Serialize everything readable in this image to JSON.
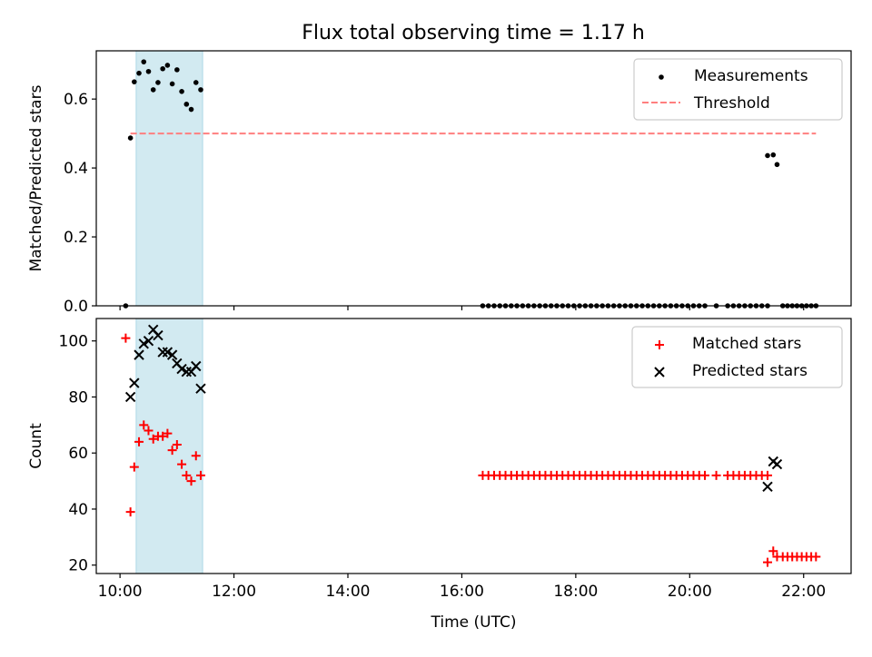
{
  "title": "Flux total observing time = 1.17 h",
  "chart_data": [
    {
      "type": "scatter",
      "ylabel": "Matched/Predicted stars",
      "xlabel": "",
      "xlim": [
        "09:35",
        "22:50"
      ],
      "ylim": [
        0,
        0.74
      ],
      "yticks": [
        0.0,
        0.2,
        0.4,
        0.6
      ],
      "ytick_labels": [
        "0.0",
        "0.2",
        "0.4",
        "0.6"
      ],
      "grid": false,
      "legend_position": "top-right",
      "shaded_interval": [
        "10:17",
        "11:27"
      ],
      "shaded_color": "#add8e6",
      "series": [
        {
          "name": "Measurements",
          "color": "#000000",
          "marker": "dot",
          "points": [
            [
              "10:06",
              0.0
            ],
            [
              "10:11",
              0.487
            ],
            [
              "10:15",
              0.65
            ],
            [
              "10:20",
              0.675
            ],
            [
              "10:25",
              0.708
            ],
            [
              "10:30",
              0.68
            ],
            [
              "10:35",
              0.627
            ],
            [
              "10:40",
              0.648
            ],
            [
              "10:45",
              0.688
            ],
            [
              "10:50",
              0.698
            ],
            [
              "10:55",
              0.644
            ],
            [
              "11:00",
              0.685
            ],
            [
              "11:05",
              0.622
            ],
            [
              "11:10",
              0.585
            ],
            [
              "11:15",
              0.57
            ],
            [
              "11:20",
              0.648
            ],
            [
              "11:25",
              0.627
            ],
            [
              "16:22",
              0.0
            ],
            [
              "16:28",
              0.0
            ],
            [
              "16:34",
              0.0
            ],
            [
              "16:40",
              0.0
            ],
            [
              "16:46",
              0.0
            ],
            [
              "16:52",
              0.0
            ],
            [
              "16:58",
              0.0
            ],
            [
              "17:04",
              0.0
            ],
            [
              "17:10",
              0.0
            ],
            [
              "17:16",
              0.0
            ],
            [
              "17:22",
              0.0
            ],
            [
              "17:28",
              0.0
            ],
            [
              "17:34",
              0.0
            ],
            [
              "17:40",
              0.0
            ],
            [
              "17:46",
              0.0
            ],
            [
              "17:52",
              0.0
            ],
            [
              "17:58",
              0.0
            ],
            [
              "18:04",
              0.0
            ],
            [
              "18:10",
              0.0
            ],
            [
              "18:16",
              0.0
            ],
            [
              "18:22",
              0.0
            ],
            [
              "18:28",
              0.0
            ],
            [
              "18:34",
              0.0
            ],
            [
              "18:40",
              0.0
            ],
            [
              "18:46",
              0.0
            ],
            [
              "18:52",
              0.0
            ],
            [
              "18:58",
              0.0
            ],
            [
              "19:04",
              0.0
            ],
            [
              "19:10",
              0.0
            ],
            [
              "19:16",
              0.0
            ],
            [
              "19:22",
              0.0
            ],
            [
              "19:28",
              0.0
            ],
            [
              "19:34",
              0.0
            ],
            [
              "19:40",
              0.0
            ],
            [
              "19:46",
              0.0
            ],
            [
              "19:52",
              0.0
            ],
            [
              "19:58",
              0.0
            ],
            [
              "20:04",
              0.0
            ],
            [
              "20:10",
              0.0
            ],
            [
              "20:16",
              0.0
            ],
            [
              "20:28",
              0.0
            ],
            [
              "20:40",
              0.0
            ],
            [
              "20:46",
              0.0
            ],
            [
              "20:52",
              0.0
            ],
            [
              "20:58",
              0.0
            ],
            [
              "21:04",
              0.0
            ],
            [
              "21:10",
              0.0
            ],
            [
              "21:16",
              0.0
            ],
            [
              "21:22",
              0.0
            ],
            [
              "21:22",
              0.436
            ],
            [
              "21:28",
              0.438
            ],
            [
              "21:32",
              0.41
            ],
            [
              "21:38",
              0.0
            ],
            [
              "21:43",
              0.0
            ],
            [
              "21:48",
              0.0
            ],
            [
              "21:53",
              0.0
            ],
            [
              "21:58",
              0.0
            ],
            [
              "22:03",
              0.0
            ],
            [
              "22:08",
              0.0
            ],
            [
              "22:13",
              0.0
            ]
          ]
        },
        {
          "name": "Threshold",
          "color": "#ff7f7f",
          "line": "dashed",
          "points": [
            [
              "10:11",
              0.5
            ],
            [
              "22:13",
              0.5
            ]
          ]
        }
      ]
    },
    {
      "type": "scatter",
      "ylabel": "Count",
      "xlabel": "Time (UTC)",
      "xlim": [
        "09:35",
        "22:50"
      ],
      "ylim": [
        17,
        108
      ],
      "yticks": [
        20,
        40,
        60,
        80,
        100
      ],
      "ytick_labels": [
        "20",
        "40",
        "60",
        "80",
        "100"
      ],
      "xticks": [
        "10:00",
        "12:00",
        "14:00",
        "16:00",
        "18:00",
        "20:00",
        "22:00"
      ],
      "xtick_labels": [
        "10:00",
        "12:00",
        "14:00",
        "16:00",
        "18:00",
        "20:00",
        "22:00"
      ],
      "grid": false,
      "legend_position": "top-right",
      "shaded_interval": [
        "10:17",
        "11:27"
      ],
      "shaded_color": "#add8e6",
      "series": [
        {
          "name": "Matched stars",
          "color": "#ff0000",
          "marker": "plus",
          "points": [
            [
              "10:06",
              101
            ],
            [
              "10:11",
              39
            ],
            [
              "10:15",
              55
            ],
            [
              "10:20",
              64
            ],
            [
              "10:25",
              70
            ],
            [
              "10:30",
              68
            ],
            [
              "10:35",
              65
            ],
            [
              "10:40",
              66
            ],
            [
              "10:45",
              66
            ],
            [
              "10:50",
              67
            ],
            [
              "10:55",
              61
            ],
            [
              "11:00",
              63
            ],
            [
              "11:05",
              56
            ],
            [
              "11:10",
              52
            ],
            [
              "11:15",
              50
            ],
            [
              "11:20",
              59
            ],
            [
              "11:25",
              52
            ],
            [
              "16:22",
              52
            ],
            [
              "16:28",
              52
            ],
            [
              "16:34",
              52
            ],
            [
              "16:40",
              52
            ],
            [
              "16:46",
              52
            ],
            [
              "16:52",
              52
            ],
            [
              "16:58",
              52
            ],
            [
              "17:04",
              52
            ],
            [
              "17:10",
              52
            ],
            [
              "17:16",
              52
            ],
            [
              "17:22",
              52
            ],
            [
              "17:28",
              52
            ],
            [
              "17:34",
              52
            ],
            [
              "17:40",
              52
            ],
            [
              "17:46",
              52
            ],
            [
              "17:52",
              52
            ],
            [
              "17:58",
              52
            ],
            [
              "18:04",
              52
            ],
            [
              "18:10",
              52
            ],
            [
              "18:16",
              52
            ],
            [
              "18:22",
              52
            ],
            [
              "18:28",
              52
            ],
            [
              "18:34",
              52
            ],
            [
              "18:40",
              52
            ],
            [
              "18:46",
              52
            ],
            [
              "18:52",
              52
            ],
            [
              "18:58",
              52
            ],
            [
              "19:04",
              52
            ],
            [
              "19:10",
              52
            ],
            [
              "19:16",
              52
            ],
            [
              "19:22",
              52
            ],
            [
              "19:28",
              52
            ],
            [
              "19:34",
              52
            ],
            [
              "19:40",
              52
            ],
            [
              "19:46",
              52
            ],
            [
              "19:52",
              52
            ],
            [
              "19:58",
              52
            ],
            [
              "20:04",
              52
            ],
            [
              "20:10",
              52
            ],
            [
              "20:16",
              52
            ],
            [
              "20:28",
              52
            ],
            [
              "20:40",
              52
            ],
            [
              "20:46",
              52
            ],
            [
              "20:52",
              52
            ],
            [
              "20:58",
              52
            ],
            [
              "21:04",
              52
            ],
            [
              "21:10",
              52
            ],
            [
              "21:16",
              52
            ],
            [
              "21:22",
              52
            ],
            [
              "21:22",
              21
            ],
            [
              "21:28",
              25
            ],
            [
              "21:32",
              23
            ],
            [
              "21:38",
              23
            ],
            [
              "21:43",
              23
            ],
            [
              "21:48",
              23
            ],
            [
              "21:53",
              23
            ],
            [
              "21:58",
              23
            ],
            [
              "22:03",
              23
            ],
            [
              "22:08",
              23
            ],
            [
              "22:13",
              23
            ]
          ]
        },
        {
          "name": "Predicted stars",
          "color": "#000000",
          "marker": "x",
          "points": [
            [
              "10:11",
              80
            ],
            [
              "10:15",
              85
            ],
            [
              "10:20",
              95
            ],
            [
              "10:25",
              99
            ],
            [
              "10:30",
              100
            ],
            [
              "10:35",
              104
            ],
            [
              "10:40",
              102
            ],
            [
              "10:45",
              96
            ],
            [
              "10:50",
              96
            ],
            [
              "10:55",
              95
            ],
            [
              "11:00",
              92
            ],
            [
              "11:05",
              90
            ],
            [
              "11:10",
              89
            ],
            [
              "11:15",
              89
            ],
            [
              "11:20",
              91
            ],
            [
              "11:25",
              83
            ],
            [
              "21:22",
              48
            ],
            [
              "21:28",
              57
            ],
            [
              "21:32",
              56
            ]
          ]
        }
      ]
    }
  ]
}
